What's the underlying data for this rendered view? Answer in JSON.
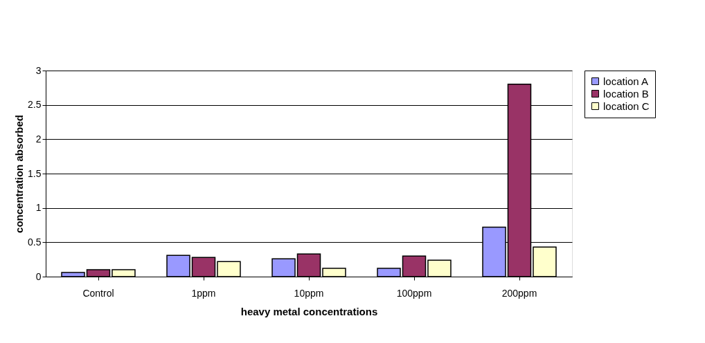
{
  "chart_data": {
    "type": "bar",
    "xlabel": "heavy metal concentrations",
    "ylabel": "concentration absorbed",
    "categories": [
      "Control",
      "1ppm",
      "10ppm",
      "100ppm",
      "200ppm"
    ],
    "series": [
      {
        "name": "location A",
        "color": "#9999ff",
        "values": [
          0.06,
          0.31,
          0.26,
          0.12,
          0.72
        ]
      },
      {
        "name": "location B",
        "color": "#993366",
        "values": [
          0.1,
          0.28,
          0.33,
          0.3,
          2.8
        ]
      },
      {
        "name": "location C",
        "color": "#ffffcc",
        "values": [
          0.1,
          0.22,
          0.12,
          0.24,
          0.43
        ]
      }
    ],
    "ylim": [
      0,
      3
    ],
    "yticks": [
      0,
      0.5,
      1,
      1.5,
      2,
      2.5,
      3
    ],
    "grid": "y",
    "legend": "right"
  }
}
